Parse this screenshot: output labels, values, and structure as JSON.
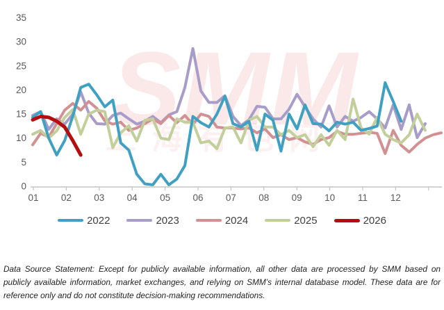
{
  "chart_data": {
    "type": "line",
    "title": "",
    "x_unit": "week of year",
    "x_axis": {
      "labels": [
        "01",
        "02",
        "03",
        "04",
        "05",
        "06",
        "07",
        "08",
        "09",
        "10",
        "11",
        "12"
      ]
    },
    "y_axis": {
      "ticks": [
        0,
        5,
        10,
        15,
        20,
        25,
        30,
        35
      ],
      "range": [
        0,
        35
      ]
    },
    "grid": false,
    "legend": {
      "position": "bottom",
      "entries": [
        "2022",
        "2023",
        "2024",
        "2025",
        "2026"
      ]
    },
    "series": [
      {
        "name": "2022",
        "color": "#3FA0C1",
        "line_width": 4,
        "values": [
          14.3,
          15.5,
          10.0,
          6.5,
          9.5,
          14.5,
          20.5,
          21.2,
          19.0,
          16.5,
          17.9,
          9.0,
          7.5,
          2.5,
          0.5,
          0.3,
          2.5,
          0.3,
          1.5,
          4.3,
          14.5,
          13.2,
          12.3,
          15.0,
          18.7,
          13.0,
          12.3,
          13.5,
          7.5,
          15.0,
          13.7,
          7.3,
          15.0,
          11.9,
          16.9,
          13.0,
          12.9,
          11.5,
          13.3,
          12.9,
          13.3,
          11.6,
          12.0,
          12.5,
          21.5,
          17.6,
          13.5
        ]
      },
      {
        "name": "2023",
        "color": "#A89CC9",
        "line_width": 4,
        "values": [
          14.7,
          15.5,
          11.8,
          14.0,
          12.9,
          15.0,
          19.6,
          15.2,
          13.0,
          12.9,
          14.7,
          15.2,
          14.0,
          12.9,
          13.5,
          14.5,
          13.2,
          14.8,
          15.5,
          20.5,
          28.6,
          19.8,
          17.4,
          17.4,
          18.8,
          14.5,
          12.6,
          13.8,
          16.6,
          16.4,
          14.0,
          14.0,
          16.0,
          19.1,
          16.5,
          14.0,
          12.3,
          16.7,
          12.3,
          14.5,
          13.5,
          14.3,
          15.5,
          14.0,
          12.1,
          16.9,
          11.8,
          16.9,
          10.1,
          13.0
        ]
      },
      {
        "name": "2024",
        "color": "#D39092",
        "line_width": 4,
        "values": [
          8.6,
          11.0,
          10.2,
          13.0,
          15.8,
          17.2,
          15.8,
          17.6,
          16.2,
          13.6,
          12.9,
          13.3,
          11.6,
          12.1,
          13.0,
          14.0,
          13.0,
          14.7,
          13.2,
          14.7,
          12.8,
          15.0,
          14.5,
          12.3,
          12.1,
          12.1,
          11.9,
          12.1,
          11.1,
          11.9,
          10.1,
          10.7,
          9.7,
          10.1,
          9.2,
          8.7,
          9.7,
          10.1,
          11.4,
          10.8,
          10.8,
          11.0,
          11.2,
          11.0,
          6.8,
          11.6,
          8.5,
          7.1,
          8.7,
          10.0,
          10.7,
          11.1
        ]
      },
      {
        "name": "2025",
        "color": "#C3CF9B",
        "line_width": 4,
        "values": [
          10.8,
          11.6,
          10.0,
          11.5,
          14.3,
          15.9,
          10.8,
          15.0,
          15.8,
          15.5,
          8.0,
          11.1,
          12.6,
          9.4,
          13.7,
          14.0,
          10.0,
          9.7,
          14.0,
          13.3,
          13.3,
          9.0,
          9.4,
          7.8,
          12.1,
          12.3,
          9.0,
          13.7,
          14.5,
          12.3,
          12.3,
          10.7,
          11.6,
          10.1,
          10.7,
          8.2,
          10.7,
          8.5,
          11.6,
          9.7,
          18.1,
          12.1,
          10.8,
          14.3,
          10.8,
          9.7,
          9.0,
          10.7,
          15.0,
          11.6
        ]
      },
      {
        "name": "2026",
        "color": "#B50D0F",
        "line_width": 5,
        "values": [
          13.8,
          14.5,
          14.3,
          13.5,
          12.3,
          9.5,
          6.5
        ]
      }
    ]
  },
  "watermark": {
    "line1": "SMM",
    "line2": "上海有色网"
  },
  "footer": {
    "text": "Data Source Statement: Except for publicly available information, all other data are processed by SMM based on publicly available information, market exchanges, and relying on SMM’s internal database model. These data are for reference only and do not constitute decision-making recommendations."
  }
}
